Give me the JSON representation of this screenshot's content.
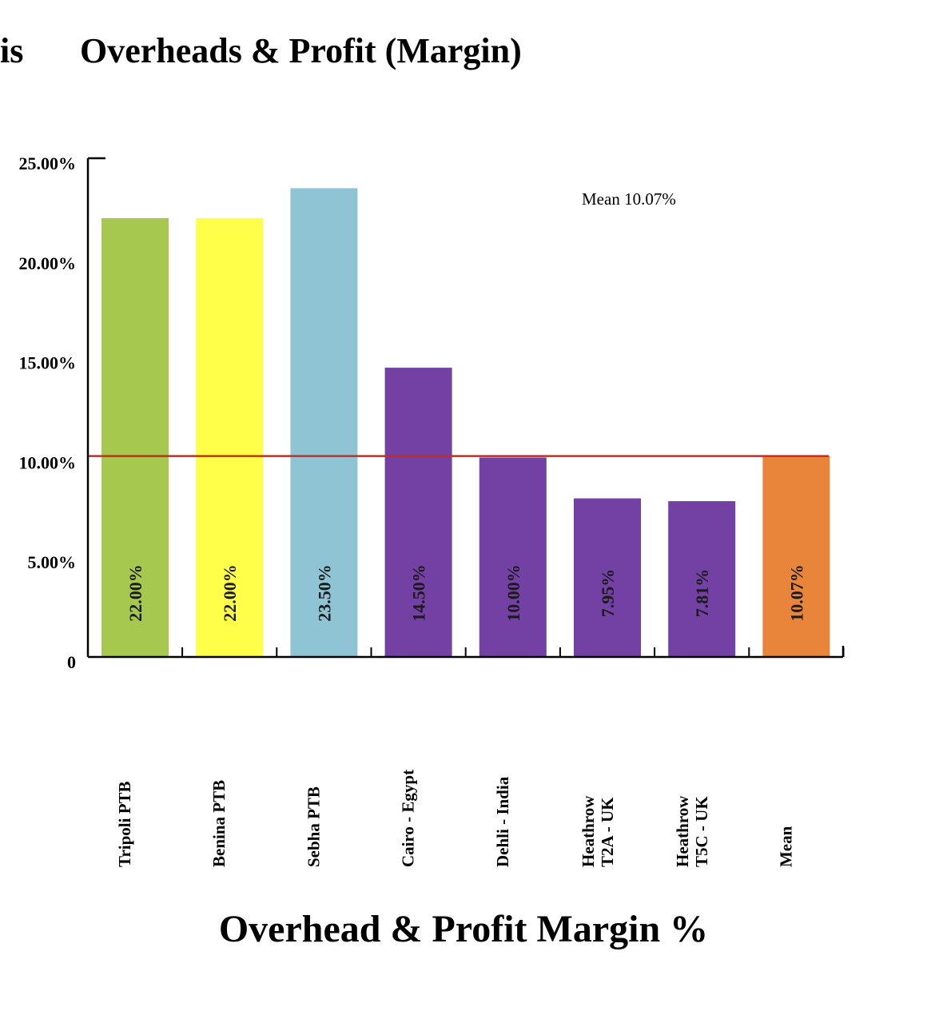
{
  "header": {
    "cut_text": "is",
    "title": "Overheads & Profit (Margin)"
  },
  "chart_data": {
    "type": "bar",
    "title": "Overheads & Profit (Margin)",
    "xlabel": "Overhead & Profit Margin %",
    "ylabel": "",
    "ylim": [
      0,
      25
    ],
    "yticks": [
      {
        "value": 0,
        "label": "0"
      },
      {
        "value": 5,
        "label": "5.00%"
      },
      {
        "value": 10,
        "label": "10.00%"
      },
      {
        "value": 15,
        "label": "15.00%"
      },
      {
        "value": 20,
        "label": "20.00%"
      },
      {
        "value": 25,
        "label": "25.00%"
      }
    ],
    "categories": [
      [
        "Tripoli PTB"
      ],
      [
        "Benina PTB"
      ],
      [
        "Sebha PTB"
      ],
      [
        "Cairo - Egypt"
      ],
      [
        "Dehli - India"
      ],
      [
        "Heathrow",
        "T2A - UK"
      ],
      [
        "Heathrow",
        "T5C - UK"
      ],
      [
        "Mean"
      ]
    ],
    "values": [
      22.0,
      22.0,
      23.5,
      14.5,
      10.0,
      7.95,
      7.81,
      10.07
    ],
    "value_labels": [
      "22.00%",
      "22.00%",
      "23.50%",
      "14.50%",
      "10.00%",
      "7.95%",
      "7.81%",
      "10.07%"
    ],
    "bar_colors": [
      "#a6c84f",
      "#ffff4a",
      "#8fc4d4",
      "#7340a4",
      "#7340a4",
      "#7340a4",
      "#7340a4",
      "#e8853a"
    ],
    "mean_line": {
      "value": 10.07,
      "label": "Mean 10.07%",
      "color": "#cc2a1a"
    },
    "grid": false,
    "legend": "none"
  }
}
